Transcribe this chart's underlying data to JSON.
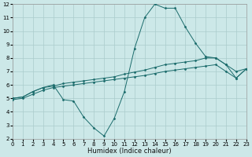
{
  "xlabel": "Humidex (Indice chaleur)",
  "xlim": [
    0,
    23
  ],
  "ylim": [
    2,
    12
  ],
  "xticks": [
    0,
    1,
    2,
    3,
    4,
    5,
    6,
    7,
    8,
    9,
    10,
    11,
    12,
    13,
    14,
    15,
    16,
    17,
    18,
    19,
    20,
    21,
    22,
    23
  ],
  "yticks": [
    2,
    3,
    4,
    5,
    6,
    7,
    8,
    9,
    10,
    11,
    12
  ],
  "bg_color": "#cce8e8",
  "grid_color": "#aacccc",
  "line_color": "#1a6b6b",
  "curves": [
    {
      "x": [
        0,
        1,
        2,
        3,
        4,
        5,
        6,
        7,
        8,
        9,
        10,
        11,
        12,
        13,
        14,
        15,
        16,
        17,
        18,
        19,
        20,
        21,
        22,
        23
      ],
      "y": [
        5.0,
        5.1,
        5.5,
        5.8,
        5.9,
        6.1,
        6.2,
        6.3,
        6.4,
        6.5,
        6.6,
        6.8,
        6.95,
        7.1,
        7.3,
        7.5,
        7.6,
        7.7,
        7.8,
        8.0,
        8.0,
        7.5,
        7.0,
        7.2
      ]
    },
    {
      "x": [
        0,
        1,
        2,
        3,
        4,
        5,
        6,
        7,
        8,
        9,
        10,
        11,
        12,
        13,
        14,
        15,
        16,
        17,
        18,
        19,
        20,
        21,
        22,
        23
      ],
      "y": [
        4.9,
        5.0,
        5.3,
        5.6,
        5.8,
        5.9,
        6.0,
        6.1,
        6.2,
        6.3,
        6.4,
        6.5,
        6.6,
        6.7,
        6.85,
        7.0,
        7.1,
        7.2,
        7.3,
        7.4,
        7.5,
        7.0,
        6.5,
        7.2
      ]
    },
    {
      "x": [
        0,
        1,
        2,
        3,
        4,
        5,
        6,
        7,
        8,
        9,
        10,
        11,
        12,
        13,
        14,
        15,
        16,
        17,
        18,
        19,
        20,
        21,
        22,
        23
      ],
      "y": [
        5.0,
        5.1,
        5.5,
        5.8,
        6.0,
        4.9,
        4.8,
        3.6,
        2.8,
        2.2,
        3.5,
        5.5,
        8.7,
        11.0,
        12.0,
        11.7,
        11.7,
        10.3,
        9.1,
        8.1,
        8.0,
        7.5,
        6.5,
        7.2
      ]
    }
  ]
}
